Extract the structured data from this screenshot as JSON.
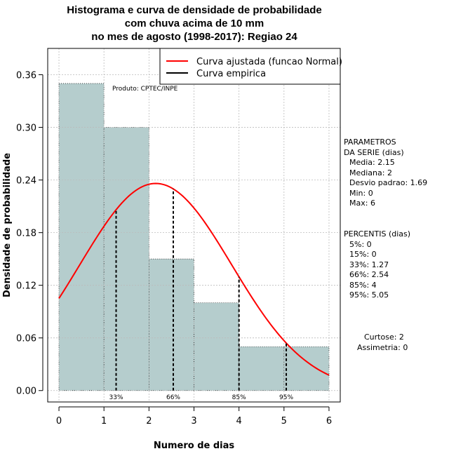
{
  "chart_data": {
    "type": "histogram",
    "title": [
      "Histograma e curva de densidade de probabilidade",
      "com chuva acima de 10 mm",
      "no mes de agosto (1998-2017): Regiao 24"
    ],
    "xlabel": "Numero de dias",
    "ylabel": "Densidade de probabilidade",
    "xlim": [
      -0.25,
      6.25
    ],
    "ylim": [
      -0.013,
      0.39
    ],
    "xticks": [
      0,
      1,
      2,
      3,
      4,
      5,
      6
    ],
    "yticks": [
      0.0,
      0.06,
      0.12,
      0.18,
      0.24,
      0.3,
      0.36
    ],
    "ytick_labels": [
      "0.00",
      "0.06",
      "0.12",
      "0.18",
      "0.24",
      "0.30",
      "0.36"
    ],
    "grid": true,
    "bars": [
      {
        "x0": 0,
        "x1": 1,
        "value": 0.35
      },
      {
        "x0": 1,
        "x1": 2,
        "value": 0.3
      },
      {
        "x0": 2,
        "x1": 3,
        "value": 0.15
      },
      {
        "x0": 3,
        "x1": 4,
        "value": 0.1
      },
      {
        "x0": 4,
        "x1": 5,
        "value": 0.05
      },
      {
        "x0": 5,
        "x1": 6,
        "value": 0.05
      }
    ],
    "normal_curve": {
      "mean": 2.15,
      "sd": 1.69,
      "range": [
        0,
        6
      ]
    },
    "percentile_lines": [
      {
        "label": "33%",
        "x": 1.27
      },
      {
        "label": "66%",
        "x": 2.54
      },
      {
        "label": "85%",
        "x": 4.0
      },
      {
        "label": "95%",
        "x": 5.05
      }
    ],
    "legend": {
      "position": "top-right",
      "entries": [
        {
          "label": "Curva ajustada (funcao Normal)",
          "color": "#ff0000"
        },
        {
          "label": "Curva empirica",
          "color": "#000000"
        }
      ]
    },
    "annotation": "Produto: CPTEC/INPE",
    "colors": {
      "bar_fill": "#b5cdcd",
      "curve": "#ff0000",
      "grid": "#bbbbbb"
    }
  },
  "parametros": {
    "header": "PARAMETROS\nDA SERIE (dias)",
    "items": [
      "Media: 2.15",
      "Mediana: 2",
      "Desvio padrao: 1.69",
      "Min: 0",
      "Max: 6"
    ]
  },
  "percentis": {
    "header": "PERCENTIS (dias)",
    "items": [
      "5%: 0",
      "15%: 0",
      "33%: 1.27",
      "66%: 2.54",
      "85%: 4",
      "95%: 5.05"
    ]
  },
  "shape": {
    "curtose": "Curtose: 2",
    "assimetria": "Assimetria: 0"
  }
}
